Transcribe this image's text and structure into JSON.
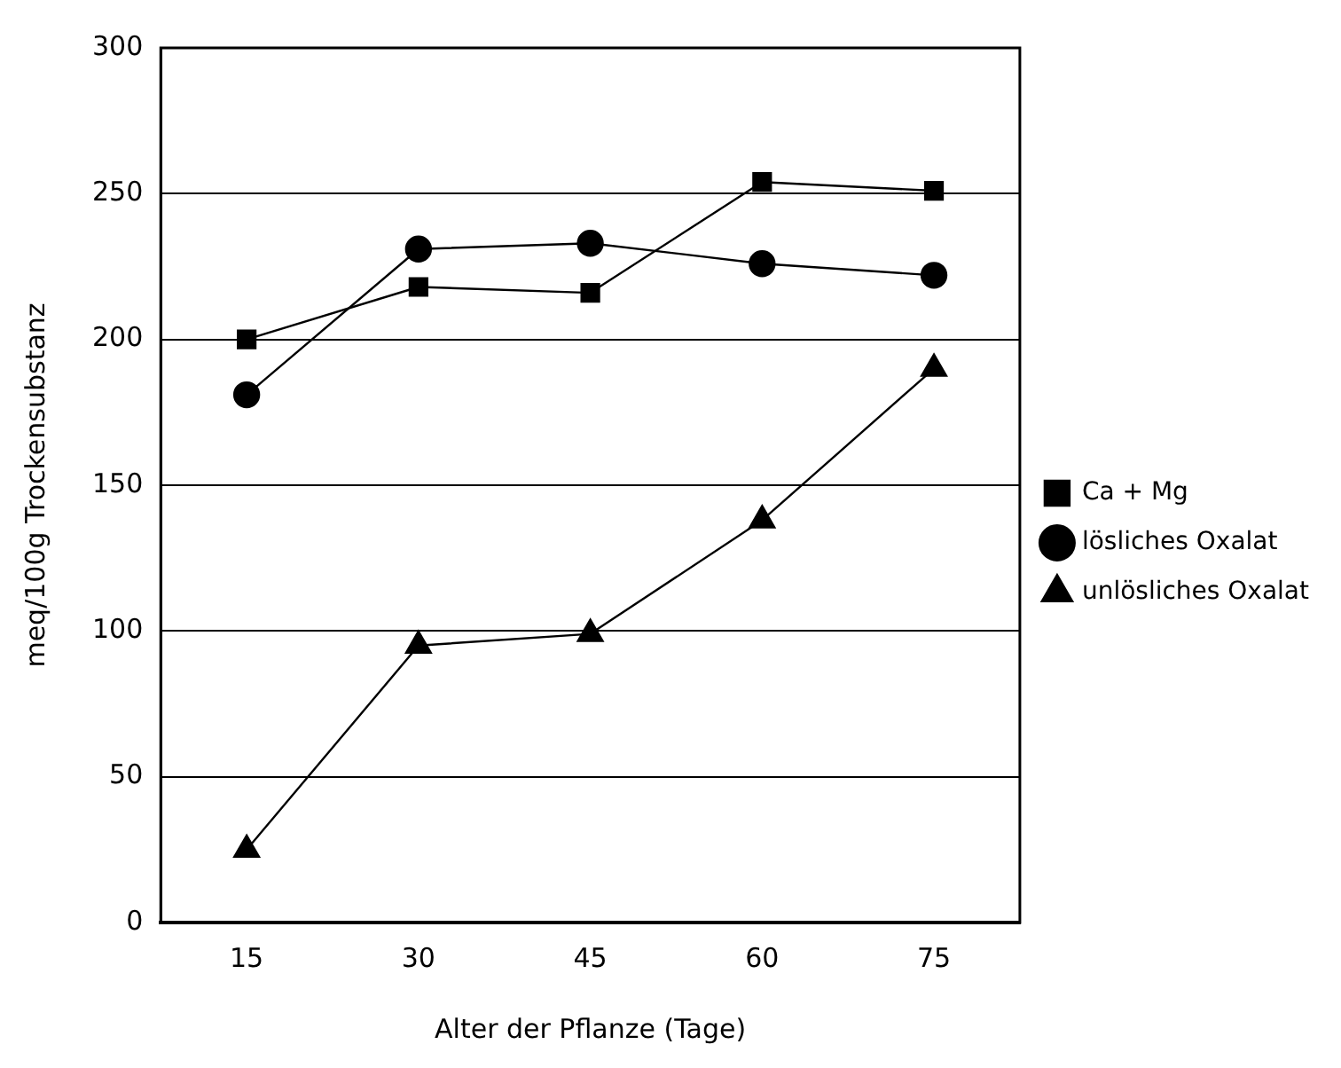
{
  "chart_data": {
    "type": "line",
    "xlabel": "Alter der Pflanze (Tage)",
    "ylabel": "meq/100g Trockensubstanz",
    "categories": [
      "15",
      "30",
      "45",
      "60",
      "75"
    ],
    "series": [
      {
        "name": "Ca + Mg",
        "color": "#000000",
        "marker": "square",
        "values": [
          200,
          218,
          216,
          254,
          251
        ]
      },
      {
        "name": "lösliches Oxalat",
        "color": "#000000",
        "marker": "circle",
        "values": [
          181,
          231,
          233,
          226,
          222
        ]
      },
      {
        "name": "unlösliches Oxalat",
        "color": "#000000",
        "marker": "triangle",
        "values": [
          25,
          95,
          99,
          138,
          190
        ]
      }
    ],
    "ylim": [
      0,
      300
    ],
    "yticks": [
      0,
      50,
      100,
      150,
      200,
      250,
      300
    ],
    "grid": "y",
    "legend": "right",
    "line_style": "solid"
  }
}
